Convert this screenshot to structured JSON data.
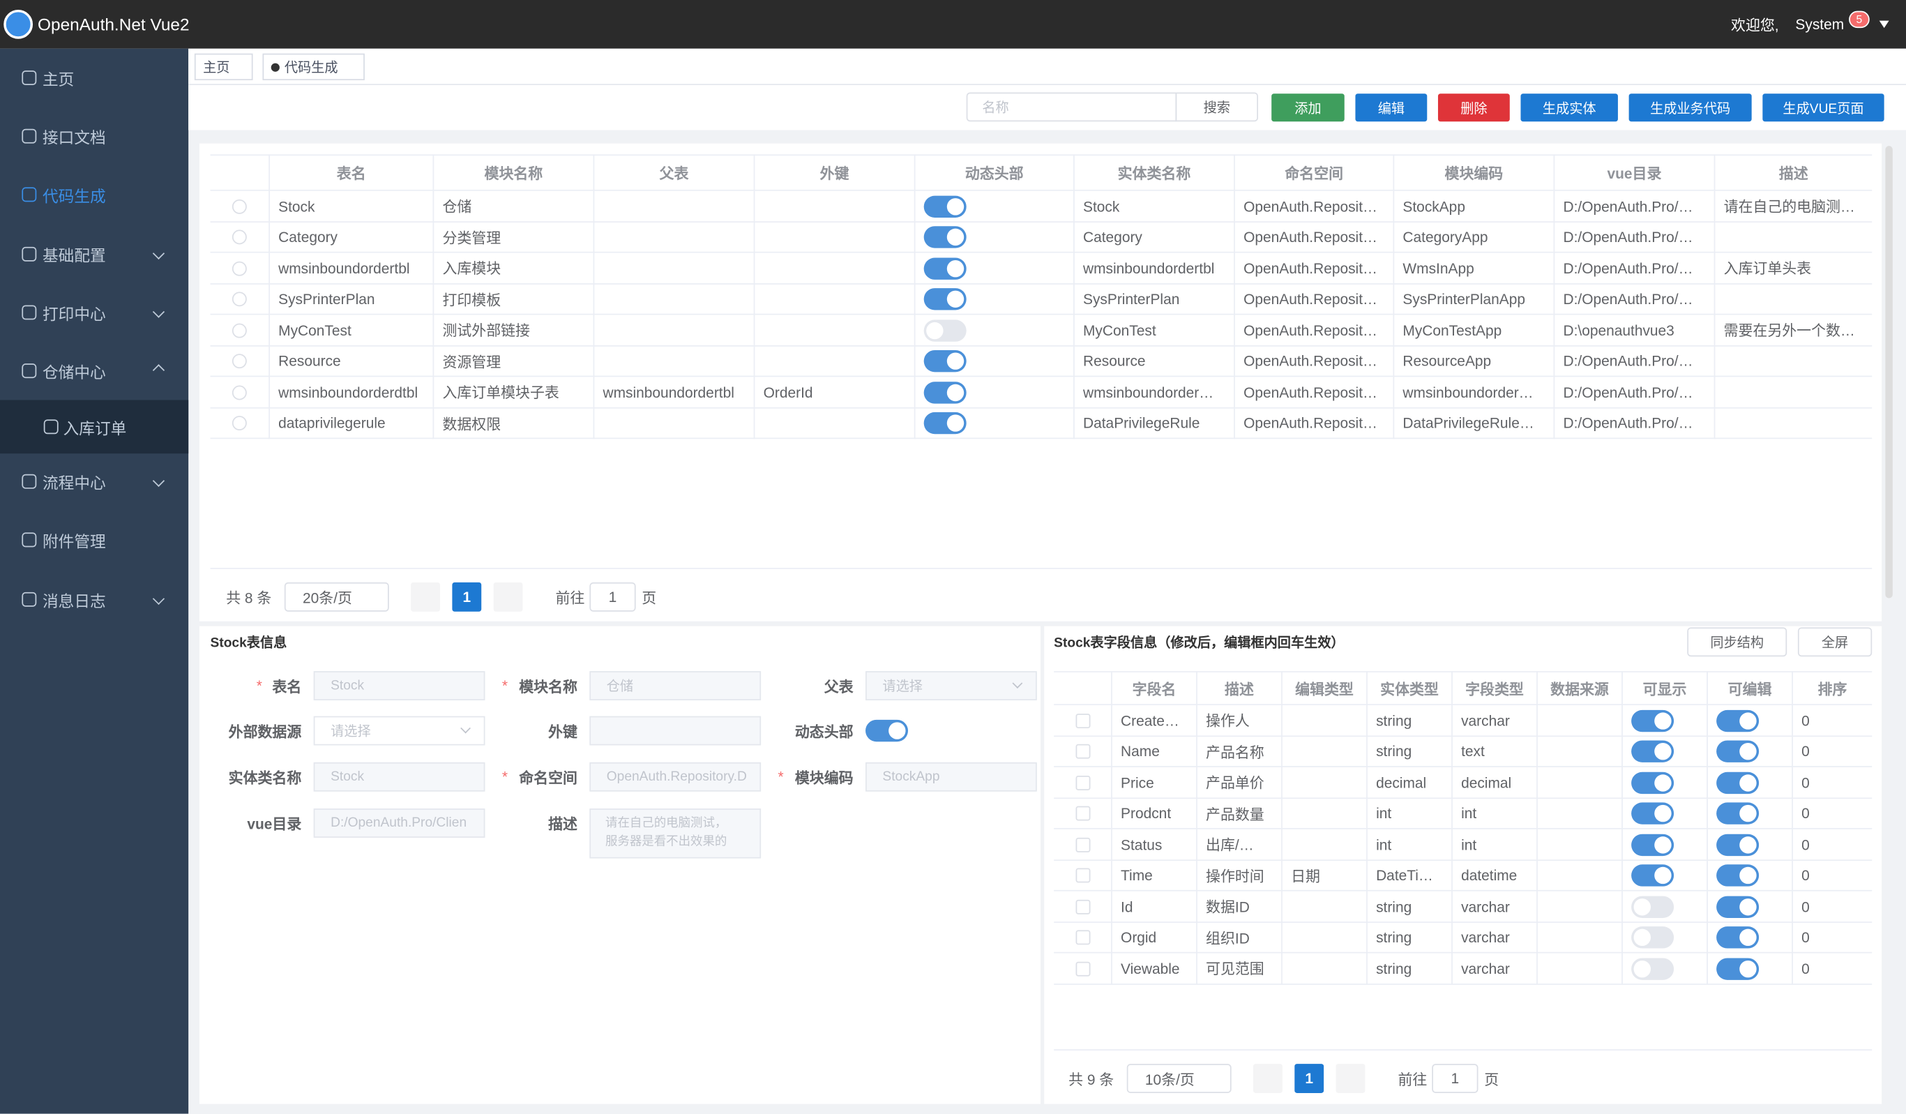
{
  "header": {
    "title": "OpenAuth.Net Vue2",
    "welcome": "欢迎您,",
    "user": "System",
    "badge": "5"
  },
  "menu": [
    {
      "label": "主页"
    },
    {
      "label": "接口文档"
    },
    {
      "label": "代码生成",
      "active": true
    },
    {
      "label": "基础配置",
      "arrow": "down"
    },
    {
      "label": "打印中心",
      "arrow": "down"
    },
    {
      "label": "仓储中心",
      "arrow": "up"
    },
    {
      "label": "入库订单",
      "child": true
    },
    {
      "label": "流程中心",
      "arrow": "down"
    },
    {
      "label": "附件管理"
    },
    {
      "label": "消息日志",
      "arrow": "down"
    }
  ],
  "tabs": [
    {
      "label": "主页"
    },
    {
      "label": "代码生成",
      "active": true
    }
  ],
  "toolbar": {
    "search_placeholder": "名称",
    "search_button": "搜索",
    "buttons": [
      {
        "label": "添加",
        "color": "#3f9e5d"
      },
      {
        "label": "编辑",
        "color": "#1d79d2"
      },
      {
        "label": "删除",
        "color": "#df3439"
      },
      {
        "label": "生成实体",
        "color": "#1d79d2"
      },
      {
        "label": "生成业务代码",
        "color": "#1d79d2"
      },
      {
        "label": "生成VUE页面",
        "color": "#1d79d2"
      }
    ]
  },
  "table": {
    "columns": [
      "表名",
      "模块名称",
      "父表",
      "外键",
      "动态头部",
      "实体类名称",
      "命名空间",
      "模块编码",
      "vue目录",
      "描述"
    ],
    "rows": [
      [
        "Stock",
        "仓储",
        null,
        null,
        true,
        "Stock",
        "OpenAuth.Reposit…",
        "StockApp",
        "D:/OpenAuth.Pro/…",
        "请在自己的电脑测…"
      ],
      [
        "Category",
        "分类管理",
        null,
        null,
        true,
        "Category",
        "OpenAuth.Reposit…",
        "CategoryApp",
        "D:/OpenAuth.Pro/…",
        null
      ],
      [
        "wmsinboundordertbl",
        "入库模块",
        null,
        null,
        true,
        "wmsinboundordertbl",
        "OpenAuth.Reposit…",
        "WmsInApp",
        "D:/OpenAuth.Pro/…",
        "入库订单头表"
      ],
      [
        "SysPrinterPlan",
        "打印模板",
        null,
        null,
        true,
        "SysPrinterPlan",
        "OpenAuth.Reposit…",
        "SysPrinterPlanApp",
        "D:/OpenAuth.Pro/…",
        null
      ],
      [
        "MyConTest",
        "测试外部链接",
        null,
        null,
        false,
        "MyConTest",
        "OpenAuth.Reposit…",
        "MyConTestApp",
        "D:\\openauthvue3",
        "需要在另外一个数…"
      ],
      [
        "Resource",
        "资源管理",
        null,
        null,
        true,
        "Resource",
        "OpenAuth.Reposit…",
        "ResourceApp",
        "D:/OpenAuth.Pro/…",
        null
      ],
      [
        "wmsinboundorderdtbl",
        "入库订单模块子表",
        "wmsinboundordertbl",
        "OrderId",
        true,
        "wmsinboundorder…",
        "OpenAuth.Reposit…",
        "wmsinboundorder…",
        "D:/OpenAuth.Pro/…",
        null
      ],
      [
        "dataprivilegerule",
        "数据权限",
        null,
        null,
        true,
        "DataPrivilegeRule",
        "OpenAuth.Reposit…",
        "DataPrivilegeRule…",
        "D:/OpenAuth.Pro/…",
        null
      ]
    ],
    "pagination": {
      "total": "共 8 条",
      "size": "20条/页",
      "page": "1",
      "goto": "前往",
      "goto_value": "1",
      "unit": "页"
    }
  },
  "form": {
    "title": "Stock表信息",
    "required_mark": "*",
    "fields": [
      {
        "label": "表名",
        "required": true,
        "value": "Stock"
      },
      {
        "label": "模块名称",
        "required": true,
        "value": "仓储"
      },
      {
        "label": "父表",
        "placeholder": "请选择",
        "kind": "select"
      },
      {
        "label": "外部数据源",
        "placeholder": "请选择",
        "kind": "select"
      },
      {
        "label": "外键"
      },
      {
        "label": "动态头部",
        "kind": "switch",
        "on": true
      },
      {
        "label": "实体类名称",
        "value": "Stock"
      },
      {
        "label": "命名空间",
        "required": true,
        "value": "OpenAuth.Repository.D"
      },
      {
        "label": "模块编码",
        "required": true,
        "value": "StockApp"
      },
      {
        "label": "vue目录",
        "value": "D:/OpenAuth.Pro/Clien"
      },
      {
        "label": "描述",
        "kind": "textarea",
        "placeholder": "请在自己的电脑测试，\n服务器是看不出效果的"
      }
    ]
  },
  "fields": {
    "title": "Stock表字段信息（修改后，编辑框内回车生效）",
    "buttons": [
      "同步结构",
      "全屏"
    ],
    "columns": [
      "字段名",
      "描述",
      "编辑类型",
      "实体类型",
      "字段类型",
      "数据来源",
      "可显示",
      "可编辑",
      "排序"
    ],
    "rows": [
      [
        "Create…",
        "操作人",
        null,
        "string",
        "varchar",
        null,
        true,
        true,
        0
      ],
      [
        "Name",
        "产品名称",
        null,
        "string",
        "text",
        null,
        true,
        true,
        0
      ],
      [
        "Price",
        "产品单价",
        null,
        "decimal",
        "decimal",
        null,
        true,
        true,
        0
      ],
      [
        "Prodcnt",
        "产品数量",
        null,
        "int",
        "int",
        null,
        true,
        true,
        0
      ],
      [
        "Status",
        "出库/…",
        null,
        "int",
        "int",
        null,
        true,
        true,
        0
      ],
      [
        "Time",
        "操作时间",
        "日期",
        "DateTi…",
        "datetime",
        null,
        true,
        true,
        0
      ],
      [
        "Id",
        "数据ID",
        null,
        "string",
        "varchar",
        null,
        false,
        true,
        0
      ],
      [
        "Orgid",
        "组织ID",
        null,
        "string",
        "varchar",
        null,
        false,
        true,
        0
      ],
      [
        "Viewable",
        "可见范围",
        null,
        "string",
        "varchar",
        null,
        false,
        true,
        0
      ]
    ],
    "pagination": {
      "total": "共 9 条",
      "size": "10条/页",
      "page": "1",
      "goto": "前往",
      "goto_value": "1",
      "unit": "页"
    }
  }
}
